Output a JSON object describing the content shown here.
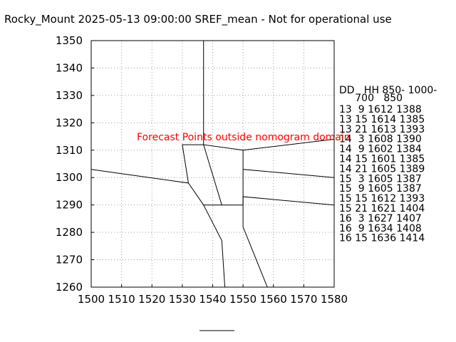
{
  "chart_data": {
    "type": "line",
    "title": "Rocky_Mount 2025-05-13 09:00:00 SREF_mean - Not for operational use",
    "xlim": [
      1500,
      1580
    ],
    "ylim": [
      1260,
      1350
    ],
    "x_ticks": [
      "1500",
      "1510",
      "1520",
      "1530",
      "1540",
      "1550",
      "1560",
      "1570",
      "1580"
    ],
    "y_ticks": [
      "1260",
      "1270",
      "1280",
      "1290",
      "1300",
      "1310",
      "1320",
      "1330",
      "1340",
      "1350"
    ],
    "grid": true,
    "annotation": "Forecast Points outside nomogram domain",
    "lines": [
      [
        [
          1537,
          1350
        ],
        [
          1537,
          1312
        ],
        [
          1550,
          1310
        ],
        [
          1580,
          1314
        ]
      ],
      [
        [
          1537,
          1312
        ],
        [
          1530,
          1312
        ],
        [
          1532,
          1298
        ],
        [
          1500,
          1303
        ]
      ],
      [
        [
          1532,
          1298
        ],
        [
          1537,
          1290
        ],
        [
          1550,
          1290
        ],
        [
          1550,
          1303
        ],
        [
          1580,
          1300
        ]
      ],
      [
        [
          1537,
          1312
        ],
        [
          1543,
          1290
        ]
      ],
      [
        [
          1550,
          1310
        ],
        [
          1550,
          1303
        ]
      ],
      [
        [
          1550,
          1290
        ],
        [
          1550,
          1293
        ],
        [
          1580,
          1290
        ]
      ],
      [
        [
          1537,
          1290
        ],
        [
          1543,
          1277
        ],
        [
          1544,
          1260
        ]
      ],
      [
        [
          1550,
          1290
        ],
        [
          1550,
          1282
        ],
        [
          1558,
          1260
        ]
      ]
    ],
    "table": {
      "header": [
        "DD   HH 850- 1000-",
        "     700   850"
      ],
      "rows": [
        "13  9 1612 1388",
        "13 15 1614 1385",
        "13 21 1613 1393",
        "14  3 1608 1390",
        "14  9 1602 1384",
        "14 15 1601 1385",
        "14 21 1605 1389",
        "15  3 1605 1387",
        "15  9 1605 1387",
        "15 15 1612 1393",
        "15 21 1621 1404",
        "16  3 1627 1407",
        "16  9 1634 1408",
        "16 15 1636 1414"
      ]
    }
  }
}
